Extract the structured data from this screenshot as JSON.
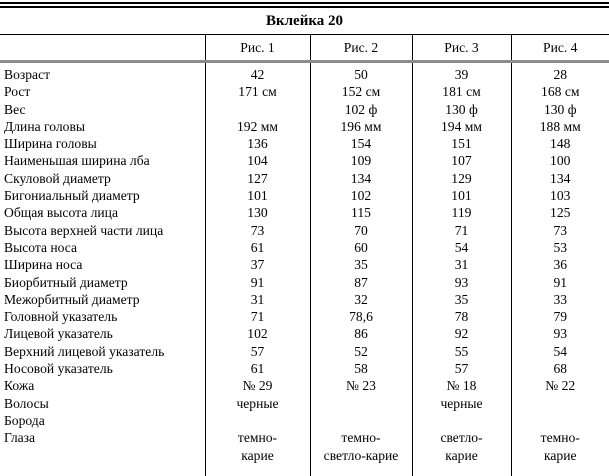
{
  "title": "Вклейка 20",
  "colors": {
    "background": "#ffffff",
    "text": "#000000",
    "rule_black": "#000000",
    "rule_gray": "#8c8c8c"
  },
  "table": {
    "columns": [
      "Рис. 1",
      "Рис. 2",
      "Рис. 3",
      "Рис. 4"
    ],
    "rows": [
      {
        "label": "Возраст",
        "values": [
          "42",
          "50",
          "39",
          "28"
        ]
      },
      {
        "label": "Рост",
        "values": [
          "171 см",
          "152 см",
          "181 см",
          "168 см"
        ]
      },
      {
        "label": "Вес",
        "values": [
          "",
          "102 ф",
          "130 ф",
          "130 ф"
        ]
      },
      {
        "label": "Длина головы",
        "values": [
          "192 мм",
          "196 мм",
          "194 мм",
          "188 мм"
        ]
      },
      {
        "label": "Ширина головы",
        "values": [
          "136",
          "154",
          "151",
          "148"
        ]
      },
      {
        "label": "Наименьшая ширина лба",
        "values": [
          "104",
          "109",
          "107",
          "100"
        ]
      },
      {
        "label": "Скуловой диаметр",
        "values": [
          "127",
          "134",
          "129",
          "134"
        ]
      },
      {
        "label": "Бигониальный диаметр",
        "values": [
          "101",
          "102",
          "101",
          "103"
        ]
      },
      {
        "label": "Общая высота лица",
        "values": [
          "130",
          "115",
          "119",
          "125"
        ]
      },
      {
        "label": "Высота верхней части лица",
        "values": [
          "73",
          "70",
          "71",
          "73"
        ]
      },
      {
        "label": "Высота носа",
        "values": [
          "61",
          "60",
          "54",
          "53"
        ]
      },
      {
        "label": "Ширина носа",
        "values": [
          "37",
          "35",
          "31",
          "36"
        ]
      },
      {
        "label": "Биорбитный диаметр",
        "values": [
          "91",
          "87",
          "93",
          "91"
        ]
      },
      {
        "label": "Межорбитный диаметр",
        "values": [
          "31",
          "32",
          "35",
          "33"
        ]
      },
      {
        "label": "Головной указатель",
        "values": [
          "71",
          "78,6",
          "78",
          "79"
        ]
      },
      {
        "label": "Лицевой указатель",
        "values": [
          "102",
          "86",
          "92",
          "93"
        ]
      },
      {
        "label": "Верхний лицевой указатель",
        "values": [
          "57",
          "52",
          "55",
          "54"
        ]
      },
      {
        "label": "Носовой указатель",
        "values": [
          "61",
          "58",
          "57",
          "68"
        ]
      },
      {
        "label": "Кожа",
        "values": [
          "№ 29",
          "№ 23",
          "№ 18",
          "№ 22"
        ]
      },
      {
        "label": "Волосы",
        "values": [
          "черные",
          "",
          "черные",
          ""
        ]
      },
      {
        "label": "Борода",
        "values": [
          "",
          "",
          "",
          ""
        ]
      },
      {
        "label": "Глаза",
        "values": [
          "темно-\nкарие",
          "темно-\nсветло-карие",
          "светло-\nкарие",
          "темно-\nкарие"
        ]
      }
    ]
  }
}
